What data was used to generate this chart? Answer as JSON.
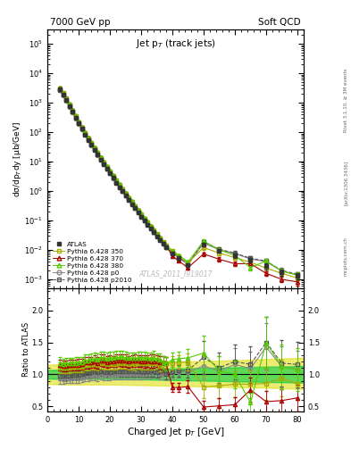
{
  "title_left": "7000 GeV pp",
  "title_right": "Soft QCD",
  "main_title": "Jet p$_T$ (track jets)",
  "ylabel_main": "dσ/dp$_{T}$dy [μb/GeV]",
  "ylabel_ratio": "Ratio to ATLAS",
  "xlabel": "Charged Jet p$_T$ [GeV]",
  "watermark": "ATLAS_2011_I919017",
  "side_text1": "Rivet 3.1.10, ≥ 3M events",
  "side_text2": "[arXiv:1306.3436]",
  "side_text3": "mcplots.cern.ch",
  "atlas_x": [
    4,
    5,
    6,
    7,
    8,
    9,
    10,
    11,
    12,
    13,
    14,
    15,
    16,
    17,
    18,
    19,
    20,
    21,
    22,
    23,
    24,
    25,
    26,
    27,
    28,
    29,
    30,
    31,
    32,
    33,
    34,
    35,
    36,
    37,
    38,
    40,
    42,
    45,
    50,
    55,
    60,
    65,
    70,
    75,
    80
  ],
  "atlas_y": [
    2800,
    1900,
    1250,
    780,
    490,
    310,
    198,
    128,
    83,
    55,
    37,
    25,
    17,
    11.5,
    8.1,
    5.7,
    3.95,
    2.75,
    1.93,
    1.36,
    0.97,
    0.69,
    0.5,
    0.36,
    0.26,
    0.187,
    0.135,
    0.098,
    0.072,
    0.053,
    0.039,
    0.029,
    0.022,
    0.016,
    0.012,
    0.0078,
    0.0053,
    0.0031,
    0.015,
    0.0095,
    0.0065,
    0.0045,
    0.0028,
    0.0017,
    0.0013
  ],
  "atlas_ye": [
    200,
    130,
    85,
    55,
    34,
    22,
    14,
    9,
    6,
    4,
    2.5,
    1.8,
    1.2,
    0.8,
    0.6,
    0.4,
    0.28,
    0.19,
    0.14,
    0.1,
    0.07,
    0.05,
    0.035,
    0.026,
    0.019,
    0.014,
    0.01,
    0.007,
    0.005,
    0.004,
    0.003,
    0.002,
    0.0016,
    0.0012,
    0.0009,
    0.0006,
    0.0004,
    0.0003,
    0.002,
    0.0015,
    0.001,
    0.0008,
    0.0006,
    0.0004,
    0.0003
  ],
  "p350_x": [
    4,
    5,
    6,
    7,
    8,
    9,
    10,
    11,
    12,
    13,
    14,
    15,
    16,
    17,
    18,
    19,
    20,
    21,
    22,
    23,
    24,
    25,
    26,
    27,
    28,
    29,
    30,
    31,
    32,
    33,
    34,
    35,
    36,
    37,
    38,
    40,
    42,
    45,
    50,
    55,
    60,
    65,
    70,
    75,
    80
  ],
  "p350_y": [
    3100,
    2100,
    1380,
    860,
    545,
    345,
    220,
    143,
    95,
    63,
    43,
    29,
    19.5,
    13.5,
    9.5,
    6.6,
    4.6,
    3.2,
    2.25,
    1.6,
    1.14,
    0.81,
    0.58,
    0.42,
    0.3,
    0.22,
    0.158,
    0.115,
    0.084,
    0.062,
    0.046,
    0.034,
    0.025,
    0.019,
    0.014,
    0.0092,
    0.0063,
    0.0037,
    0.012,
    0.0078,
    0.0055,
    0.0038,
    0.0024,
    0.0016,
    0.0011
  ],
  "p350_ye": [
    80,
    55,
    36,
    23,
    15,
    9,
    6,
    4,
    2.7,
    1.8,
    1.2,
    0.8,
    0.55,
    0.38,
    0.27,
    0.19,
    0.13,
    0.09,
    0.065,
    0.046,
    0.033,
    0.024,
    0.017,
    0.012,
    0.009,
    0.006,
    0.005,
    0.004,
    0.003,
    0.002,
    0.002,
    0.001,
    0.001,
    0.0008,
    0.0006,
    0.0004,
    0.0003,
    0.0002,
    0.002,
    0.0013,
    0.001,
    0.0007,
    0.0005,
    0.0003,
    0.0002
  ],
  "p370_x": [
    4,
    5,
    6,
    7,
    8,
    9,
    10,
    11,
    12,
    13,
    14,
    15,
    16,
    17,
    18,
    19,
    20,
    21,
    22,
    23,
    24,
    25,
    26,
    27,
    28,
    29,
    30,
    31,
    32,
    33,
    34,
    35,
    36,
    37,
    38,
    40,
    42,
    45,
    50,
    55,
    60,
    65,
    70,
    75,
    80
  ],
  "p370_y": [
    3200,
    2150,
    1420,
    890,
    560,
    355,
    228,
    148,
    98,
    65,
    44,
    30,
    20,
    14,
    9.8,
    6.8,
    4.75,
    3.3,
    2.35,
    1.66,
    1.18,
    0.84,
    0.6,
    0.435,
    0.315,
    0.226,
    0.163,
    0.118,
    0.087,
    0.064,
    0.047,
    0.035,
    0.026,
    0.019,
    0.014,
    0.0062,
    0.0042,
    0.0025,
    0.0073,
    0.0048,
    0.0034,
    0.0034,
    0.0016,
    0.001,
    0.00082
  ],
  "p370_ye": [
    80,
    55,
    37,
    23,
    15,
    9,
    6,
    4,
    2.8,
    1.8,
    1.2,
    0.8,
    0.56,
    0.39,
    0.28,
    0.19,
    0.13,
    0.09,
    0.066,
    0.047,
    0.034,
    0.024,
    0.017,
    0.012,
    0.009,
    0.006,
    0.005,
    0.004,
    0.003,
    0.002,
    0.002,
    0.001,
    0.001,
    0.0008,
    0.0006,
    0.0003,
    0.0002,
    0.0002,
    0.001,
    0.0008,
    0.0006,
    0.0006,
    0.0003,
    0.0002,
    0.0002
  ],
  "p380_x": [
    4,
    5,
    6,
    7,
    8,
    9,
    10,
    11,
    12,
    13,
    14,
    15,
    16,
    17,
    18,
    19,
    20,
    21,
    22,
    23,
    24,
    25,
    26,
    27,
    28,
    29,
    30,
    31,
    32,
    33,
    34,
    35,
    36,
    37,
    38,
    40,
    42,
    45,
    50,
    55,
    60,
    65,
    70,
    75,
    80
  ],
  "p380_y": [
    3300,
    2200,
    1460,
    910,
    575,
    365,
    234,
    152,
    101,
    67,
    46,
    31,
    21,
    14.5,
    10.2,
    7.1,
    4.95,
    3.45,
    2.44,
    1.72,
    1.23,
    0.87,
    0.625,
    0.45,
    0.325,
    0.234,
    0.169,
    0.123,
    0.09,
    0.066,
    0.049,
    0.036,
    0.027,
    0.019,
    0.014,
    0.0096,
    0.0066,
    0.0039,
    0.02,
    0.01,
    0.0065,
    0.0025,
    0.0042,
    0.0019,
    0.0014
  ],
  "p380_ye": [
    80,
    55,
    37,
    23,
    15,
    9,
    6,
    4,
    2.8,
    1.8,
    1.2,
    0.8,
    0.56,
    0.4,
    0.28,
    0.2,
    0.14,
    0.1,
    0.07,
    0.049,
    0.035,
    0.025,
    0.018,
    0.013,
    0.009,
    0.007,
    0.005,
    0.004,
    0.003,
    0.002,
    0.002,
    0.001,
    0.001,
    0.0008,
    0.0006,
    0.0004,
    0.0003,
    0.0002,
    0.003,
    0.0015,
    0.001,
    0.0005,
    0.0007,
    0.0004,
    0.0003
  ],
  "pp0_x": [
    4,
    5,
    6,
    7,
    8,
    9,
    10,
    11,
    12,
    13,
    14,
    15,
    16,
    17,
    18,
    19,
    20,
    21,
    22,
    23,
    24,
    25,
    26,
    27,
    28,
    29,
    30,
    31,
    32,
    33,
    34,
    35,
    36,
    37,
    38,
    40,
    42,
    45,
    50,
    55,
    60,
    65,
    70,
    75,
    80
  ],
  "pp0_y": [
    2600,
    1750,
    1160,
    725,
    458,
    290,
    186,
    121,
    80,
    53,
    36,
    24.5,
    16.5,
    11.4,
    8.0,
    5.6,
    3.9,
    2.72,
    1.92,
    1.36,
    0.97,
    0.69,
    0.5,
    0.36,
    0.26,
    0.188,
    0.136,
    0.099,
    0.073,
    0.054,
    0.04,
    0.03,
    0.022,
    0.016,
    0.012,
    0.008,
    0.0055,
    0.0032,
    0.017,
    0.01,
    0.0075,
    0.0049,
    0.004,
    0.0019,
    0.0014
  ],
  "pp0_ye": [
    70,
    46,
    30,
    19,
    12,
    8,
    5,
    3.3,
    2.2,
    1.5,
    1.0,
    0.68,
    0.46,
    0.32,
    0.22,
    0.16,
    0.11,
    0.077,
    0.055,
    0.039,
    0.028,
    0.02,
    0.014,
    0.01,
    0.007,
    0.005,
    0.004,
    0.003,
    0.002,
    0.002,
    0.001,
    0.001,
    0.0008,
    0.0006,
    0.0005,
    0.0003,
    0.0002,
    0.0002,
    0.002,
    0.0015,
    0.0012,
    0.0008,
    0.0006,
    0.0003,
    0.0002
  ],
  "pp2010_x": [
    4,
    5,
    6,
    7,
    8,
    9,
    10,
    11,
    12,
    13,
    14,
    15,
    16,
    17,
    18,
    19,
    20,
    21,
    22,
    23,
    24,
    25,
    26,
    27,
    28,
    29,
    30,
    31,
    32,
    33,
    34,
    35,
    36,
    37,
    38,
    40,
    42,
    45,
    50,
    55,
    60,
    65,
    70,
    75,
    80
  ],
  "pp2010_y": [
    2750,
    1860,
    1228,
    766,
    484,
    307,
    197,
    128,
    85,
    56,
    38,
    26,
    17.5,
    12.1,
    8.5,
    5.9,
    4.1,
    2.87,
    2.02,
    1.43,
    1.02,
    0.72,
    0.52,
    0.377,
    0.273,
    0.196,
    0.142,
    0.103,
    0.075,
    0.056,
    0.041,
    0.03,
    0.023,
    0.017,
    0.012,
    0.0082,
    0.0056,
    0.0033,
    0.019,
    0.0105,
    0.0078,
    0.0052,
    0.0042,
    0.002,
    0.0015
  ],
  "pp2010_ye": [
    70,
    48,
    32,
    20,
    13,
    8,
    5,
    3.4,
    2.3,
    1.5,
    1.0,
    0.7,
    0.48,
    0.33,
    0.23,
    0.16,
    0.11,
    0.08,
    0.057,
    0.04,
    0.029,
    0.021,
    0.015,
    0.011,
    0.008,
    0.006,
    0.004,
    0.003,
    0.002,
    0.002,
    0.001,
    0.001,
    0.0009,
    0.0006,
    0.0005,
    0.0003,
    0.0002,
    0.0002,
    0.003,
    0.0016,
    0.0013,
    0.0009,
    0.0007,
    0.0004,
    0.0003
  ],
  "colors": {
    "atlas": "#333333",
    "p350": "#aaaa00",
    "p370": "#aa0000",
    "p380": "#55cc00",
    "pp0": "#888888",
    "pp2010": "#555555"
  },
  "xlim": [
    0,
    82
  ],
  "ylim_main": [
    0.0005,
    300000.0
  ],
  "ylim_ratio": [
    0.42,
    2.35
  ],
  "ratio_yticks": [
    0.5,
    1.0,
    1.5,
    2.0
  ]
}
